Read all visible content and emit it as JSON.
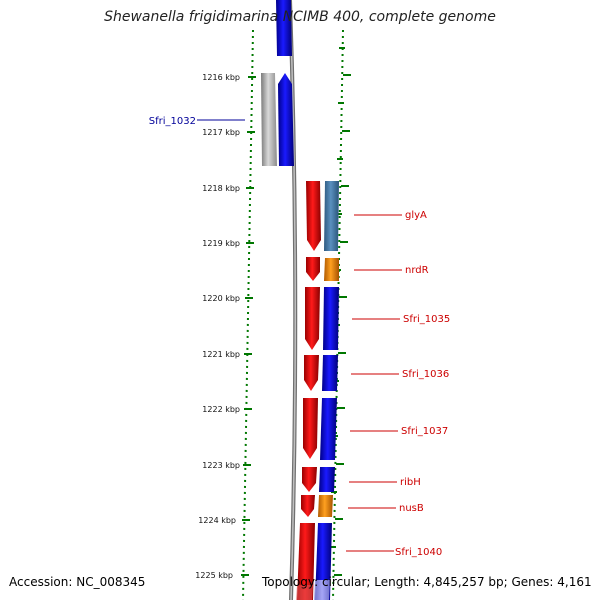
{
  "title": "Shewanella frigidimarina NCIMB 400, complete genome",
  "footer": {
    "accession": "Accession: NC_008345",
    "topology": "Topology: circular; Length: 4,845,257 bp; Genes: 4,161"
  },
  "ruler": {
    "unit": "kbp",
    "ticks": [
      "1216 kbp",
      "1217 kbp",
      "1218 kbp",
      "1219 kbp",
      "1220 kbp",
      "1221 kbp",
      "1222 kbp",
      "1223 kbp",
      "1224 kbp",
      "1225 kbp"
    ]
  },
  "colors": {
    "cds_blue": "#0000ee",
    "gene_red": "#ee0000",
    "trna_steel": "#4a7fad",
    "orange": "#f08a00",
    "pseudo_gray": "#b0b0b0",
    "label_blue": "#000099",
    "label_red": "#cc0000",
    "ruler_green": "#007700",
    "backbone": "#808080"
  },
  "genes_left": [
    {
      "label": "Sfri_1032",
      "color": "label_blue"
    }
  ],
  "genes_right": [
    {
      "label": "glyA"
    },
    {
      "label": "nrdR"
    },
    {
      "label": "Sfri_1035"
    },
    {
      "label": "Sfri_1036"
    },
    {
      "label": "Sfri_1037"
    },
    {
      "label": "ribH"
    },
    {
      "label": "nusB"
    },
    {
      "label": "Sfri_1040"
    }
  ]
}
